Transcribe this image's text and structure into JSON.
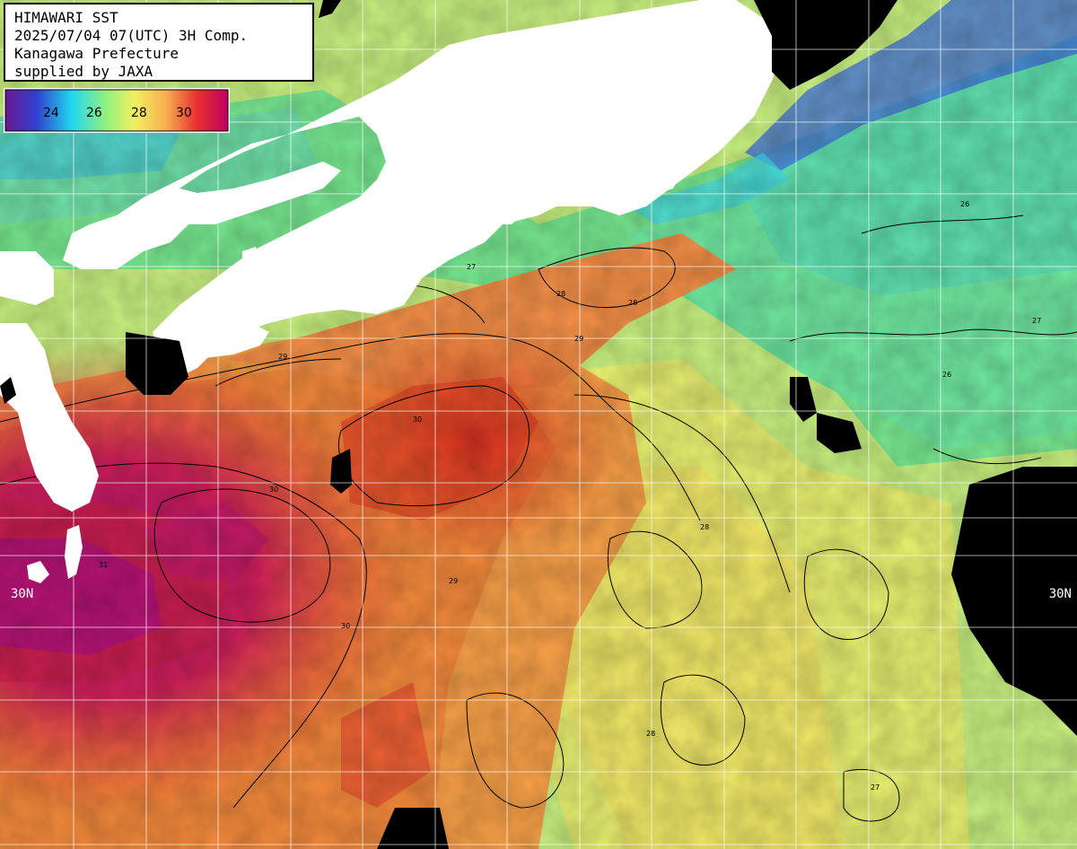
{
  "info": {
    "line1": "HIMAWARI SST",
    "line2": "2025/07/04 07(UTC) 3H Comp.",
    "line3": "Kanagawa Prefecture",
    "line4": "supplied by JAXA"
  },
  "legend": {
    "ticks": [
      "24",
      "26",
      "28",
      "30"
    ],
    "gradient_colors": [
      "#7a1a9a",
      "#3a3ad8",
      "#22d8f0",
      "#9af07a",
      "#f0f060",
      "#f8b050",
      "#e83030",
      "#c0007a"
    ]
  },
  "map": {
    "latitude_label": "30N",
    "land_color": "#ffffff",
    "no_data_color": "#000000",
    "grid_color": "#ffffff",
    "contour_color": "#000000"
  },
  "contour_labels": [
    "27",
    "28",
    "28",
    "29",
    "29",
    "30",
    "30",
    "31",
    "26",
    "27",
    "28",
    "29",
    "30",
    "28",
    "27",
    "26"
  ]
}
